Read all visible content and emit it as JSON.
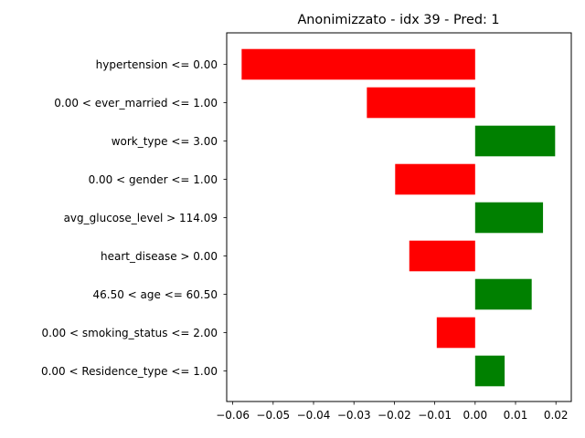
{
  "chart_data": {
    "type": "bar",
    "orientation": "horizontal",
    "title": "Anonimizzato - idx 39 - Pred: 1",
    "xlabel": "",
    "ylabel": "",
    "categories": [
      "hypertension <= 0.00",
      "0.00 < ever_married <= 1.00",
      "work_type <= 3.00",
      "0.00 < gender <= 1.00",
      "avg_glucose_level > 114.09",
      "heart_disease > 0.00",
      "46.50 < age <= 60.50",
      "0.00 < smoking_status <= 2.00",
      "0.00 < Residence_type <= 1.00"
    ],
    "values": [
      -0.0578,
      -0.0268,
      0.0198,
      -0.0198,
      0.0168,
      -0.0163,
      0.014,
      -0.0095,
      0.0073
    ],
    "xlim": [
      -0.0615,
      0.0238
    ],
    "xticks": [
      -0.06,
      -0.05,
      -0.04,
      -0.03,
      -0.02,
      -0.01,
      0.0,
      0.01,
      0.02
    ],
    "xtick_labels": [
      "−0.06",
      "−0.05",
      "−0.04",
      "−0.03",
      "−0.02",
      "−0.01",
      "0.00",
      "0.01",
      "0.02"
    ],
    "positive_color": "#008000",
    "negative_color": "#ff0000",
    "grid": false,
    "legend": "none"
  }
}
